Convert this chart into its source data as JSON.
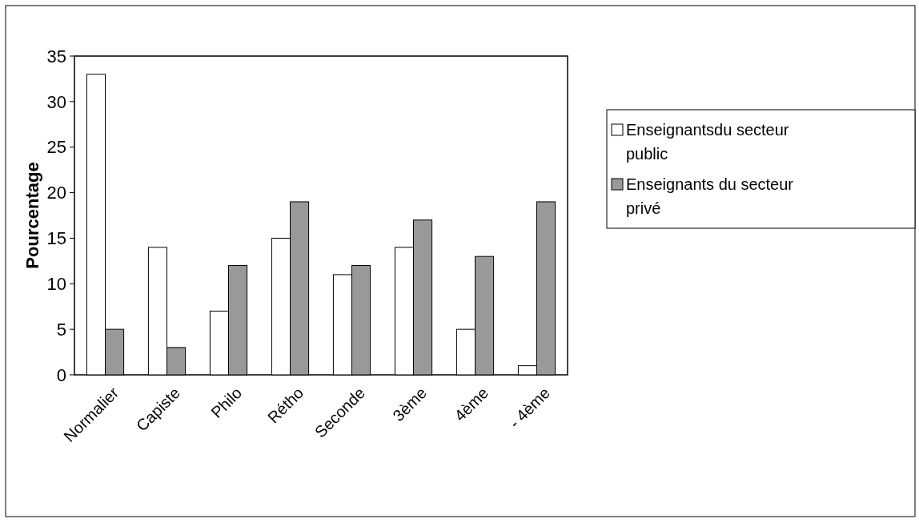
{
  "chart_data": {
    "type": "bar",
    "ylabel": "Pourcentage",
    "categories": [
      "Normalier",
      "Capiste",
      "Philo",
      "Rétho",
      "Seconde",
      "3ème",
      "4ème",
      "- 4ème"
    ],
    "series": [
      {
        "name": "Enseignantsdu secteur public",
        "color": "#ffffff",
        "values": [
          33,
          14,
          7,
          15,
          11,
          14,
          5,
          1
        ]
      },
      {
        "name": "Enseignants du secteur privé",
        "color": "#999999",
        "values": [
          5,
          3,
          12,
          19,
          12,
          17,
          13,
          19
        ]
      }
    ],
    "ylim": [
      0,
      35
    ],
    "yticks": [
      0,
      5,
      10,
      15,
      20,
      25,
      30,
      35
    ],
    "grid": false,
    "legend": "right"
  }
}
